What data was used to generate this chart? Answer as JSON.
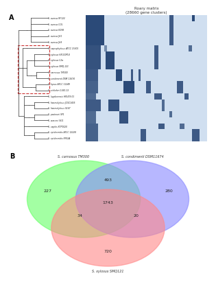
{
  "panel_a_label": "A",
  "panel_b_label": "B",
  "heatmap_title": "Roary matrix\n(28660 gene clusters)",
  "species": [
    "S. aureus RF122",
    "S. aureus COL",
    "S. aureus ED98",
    "S. aureus JH1",
    "S. aureus JH9",
    "S. saprophyticus ATCC 15305",
    "S. xylosus HKU20PL8",
    "S. xylosus C2a",
    "S. xylosus SMQ-121",
    "S. carnosus TM300",
    "S. condimenti DSM 11674",
    "S. hysus ATCC 11249",
    "S. schleferi 1360-13",
    "S. lugdunensis HKU09-01",
    "S. haemolyticus JCSC1435",
    "S. haemolyticus S167",
    "S. pasteurii SP1",
    "S. warneri SG1",
    "S. capitis KYP1020",
    "S. epidermidis ATCC 12228",
    "S. epidermidis RP62A"
  ],
  "dashed_box_species": [
    5,
    6,
    7,
    8,
    9,
    10,
    11,
    12
  ],
  "venn_labels": [
    "S. carnosus TM300",
    "S. condimenti DSM11674",
    "S. xylosus SMQ121"
  ],
  "venn_colors": [
    "#66ff66",
    "#8888ff",
    "#ff8888"
  ],
  "venn_alpha": 0.6,
  "venn_values": {
    "carnosus_only": 227,
    "condimenti_only": 280,
    "xylosus_only": 720,
    "carnosus_condimenti": 493,
    "carnosus_xylosus": 34,
    "condimenti_xylosus": 20,
    "all_three": 1743
  },
  "background_color": "#ffffff",
  "tree_line_color": "#333333",
  "heatmap_color_dark": "#1a3a6b",
  "heatmap_color_light": "#d0dff0",
  "dashed_box_color": "#cc3333"
}
